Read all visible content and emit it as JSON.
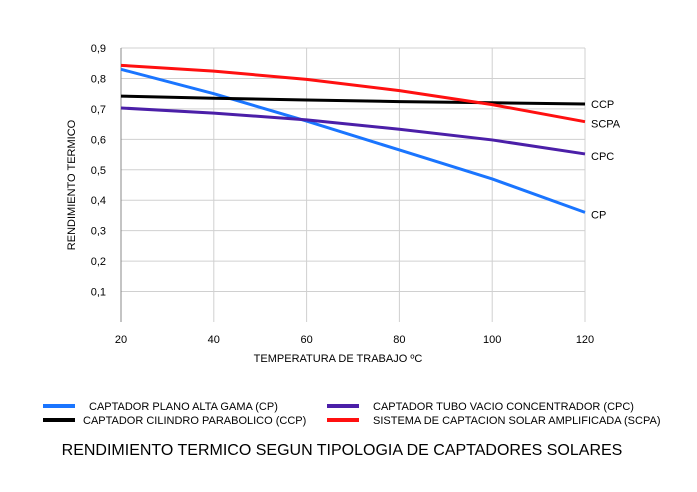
{
  "chart_data": {
    "type": "line",
    "title": "RENDIMIENTO TERMICO SEGUN TIPOLOGIA DE CAPTADORES SOLARES",
    "xlabel": "TEMPERATURA DE TRABAJO ºC",
    "ylabel": "RENDIMIENTO TERMICO",
    "xlim": [
      20,
      120
    ],
    "ylim": [
      0,
      0.9
    ],
    "x_ticks": [
      "20",
      "40",
      "60",
      "80",
      "100",
      "120"
    ],
    "y_ticks": [
      "0,1",
      "0,2",
      "0,3",
      "0,4",
      "0,5",
      "0,6",
      "0,7",
      "0,8",
      "0,9"
    ],
    "grid": true,
    "legend_position": "bottom",
    "x": [
      20,
      40,
      60,
      80,
      100,
      120
    ],
    "series": [
      {
        "name": "CAPTADOR PLANO ALTA GAMA (CP)",
        "end_label": "CP",
        "color": "#1a75ff",
        "values": [
          0.83,
          0.75,
          0.66,
          0.565,
          0.47,
          0.36
        ]
      },
      {
        "name": "CAPTADOR CILINDRO PARABOLICO (CCP)",
        "end_label": "CCP",
        "color": "#000000",
        "values": [
          0.742,
          0.735,
          0.729,
          0.724,
          0.72,
          0.716
        ]
      },
      {
        "name": "CAPTADOR TUBO VACIO CONCENTRADOR (CPC)",
        "end_label": "CPC",
        "color": "#4b1fa8",
        "values": [
          0.703,
          0.686,
          0.664,
          0.633,
          0.598,
          0.552
        ]
      },
      {
        "name": "SISTEMA DE CAPTACION SOLAR AMPLIFICADA (SCPA)",
        "end_label": "SCPA",
        "color": "#ff1010",
        "values": [
          0.843,
          0.824,
          0.797,
          0.76,
          0.714,
          0.658
        ]
      }
    ]
  }
}
